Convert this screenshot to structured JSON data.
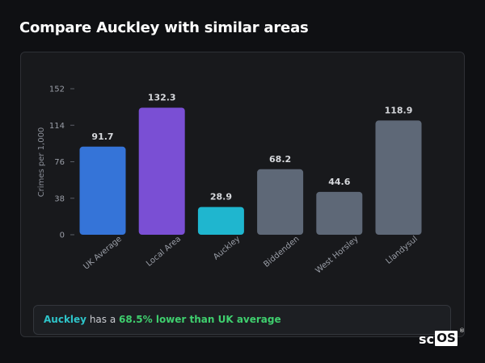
{
  "header": {
    "title": "Compare Auckley with similar areas"
  },
  "chart_data": {
    "type": "bar",
    "ylabel": "Crimes per 1,000",
    "xlabel": "",
    "ylim": [
      0,
      152
    ],
    "yticks": [
      0,
      38,
      76,
      114,
      152
    ],
    "categories": [
      "UK Average",
      "Local Area",
      "Auckley",
      "Biddenden",
      "West Horsley",
      "Llandysul"
    ],
    "values": [
      91.7,
      132.3,
      28.9,
      68.2,
      44.6,
      118.9
    ],
    "value_labels": [
      "91.7",
      "132.3",
      "28.9",
      "68.2",
      "44.6",
      "118.9"
    ],
    "colors": [
      "#3574d8",
      "#7a4fd4",
      "#1fb6cf",
      "#5e6877",
      "#5e6877",
      "#5e6877"
    ],
    "grid": false
  },
  "summary": {
    "area": "Auckley",
    "middle": " has a ",
    "stat": "68.5% lower than UK average"
  },
  "brand": {
    "sc": "sc",
    "os": "OS",
    "reg": "®"
  }
}
